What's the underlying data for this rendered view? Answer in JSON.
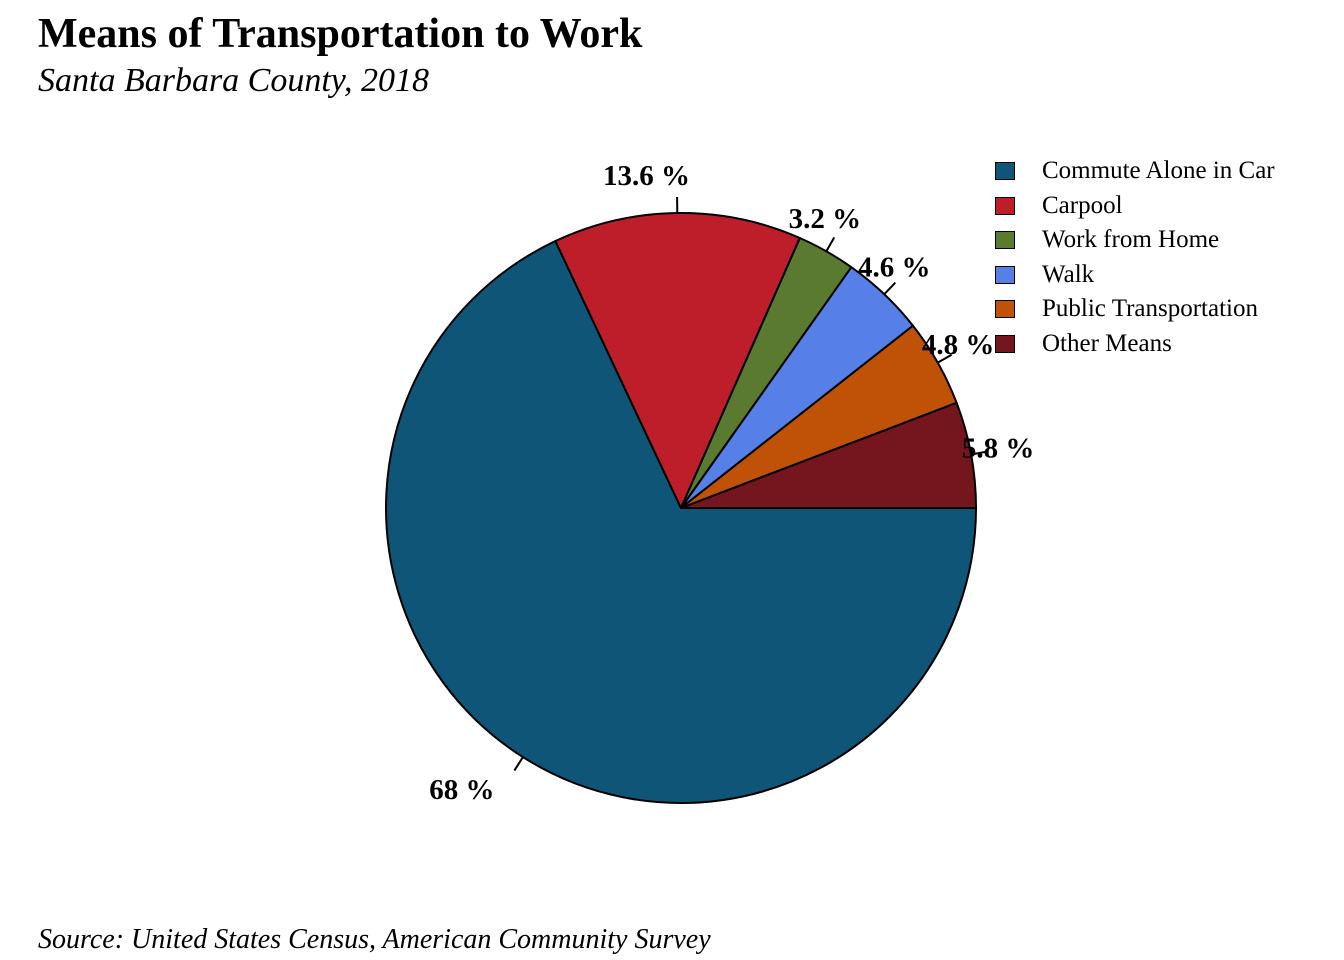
{
  "chart_data": {
    "type": "pie",
    "title": "Means of Transportation to Work",
    "subtitle": "Santa Barbara County, 2018",
    "caption": "Source: United States Census, American Community Survey",
    "legend_position": "top-right",
    "slices": [
      {
        "label": "Commute Alone in Car",
        "value": 68,
        "value_label": "68 %",
        "color": "#0e5577"
      },
      {
        "label": "Carpool",
        "value": 13.6,
        "value_label": "13.6 %",
        "color": "#be1e2a"
      },
      {
        "label": "Work from Home",
        "value": 3.2,
        "value_label": "3.2 %",
        "color": "#5a7a30"
      },
      {
        "label": "Walk",
        "value": 4.6,
        "value_label": "4.6 %",
        "color": "#5680e8"
      },
      {
        "label": "Public Transportation",
        "value": 4.8,
        "value_label": "4.8 %",
        "color": "#c05208"
      },
      {
        "label": "Other Means",
        "value": 5.8,
        "value_label": "5.8 %",
        "color": "#75161e"
      }
    ]
  }
}
